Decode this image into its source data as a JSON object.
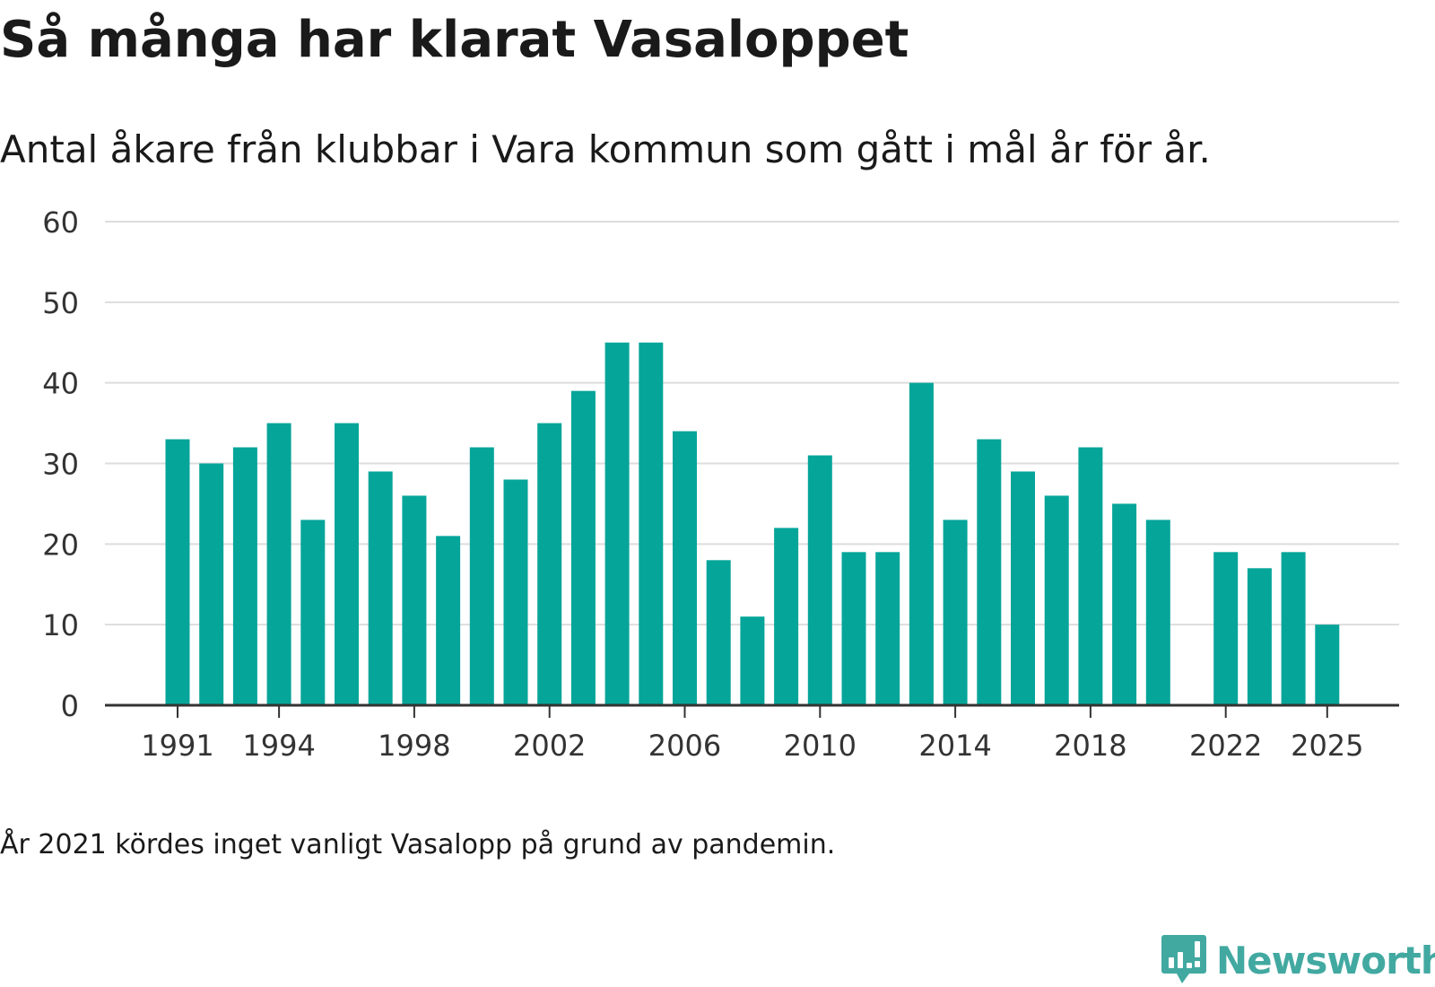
{
  "header": {
    "title": "Så många har klarat Vasaloppet",
    "subtitle": "Antal åkare från klubbar i Vara kommun som gått i mål år för år."
  },
  "footer": {
    "note": "År 2021 kördes inget vanligt Vasalopp på grund av pandemin.",
    "brand": "Newsworthy",
    "brand_icon": "newsworthy-logo-icon"
  },
  "colors": {
    "bar": "#06a59a",
    "grid": "#dddddd",
    "axis": "#333333",
    "text": "#1a1a1a",
    "brand": "#42a9a1"
  },
  "chart_data": {
    "type": "bar",
    "title": "Så många har klarat Vasaloppet",
    "xlabel": "",
    "ylabel": "",
    "ylim": [
      0,
      60
    ],
    "yticks": [
      0,
      10,
      20,
      30,
      40,
      50,
      60
    ],
    "grid": true,
    "x_tick_labels": [
      1991,
      1994,
      1998,
      2002,
      2006,
      2010,
      2014,
      2018,
      2022,
      2025
    ],
    "categories": [
      1991,
      1992,
      1993,
      1994,
      1995,
      1996,
      1997,
      1998,
      1999,
      2000,
      2001,
      2002,
      2003,
      2004,
      2005,
      2006,
      2007,
      2008,
      2009,
      2010,
      2011,
      2012,
      2013,
      2014,
      2015,
      2016,
      2017,
      2018,
      2019,
      2020,
      2021,
      2022,
      2023,
      2024,
      2025
    ],
    "values": [
      33,
      30,
      32,
      35,
      23,
      35,
      29,
      26,
      21,
      32,
      28,
      35,
      39,
      45,
      45,
      34,
      18,
      11,
      22,
      31,
      19,
      19,
      40,
      23,
      33,
      29,
      26,
      32,
      25,
      23,
      null,
      19,
      17,
      19,
      10
    ]
  }
}
